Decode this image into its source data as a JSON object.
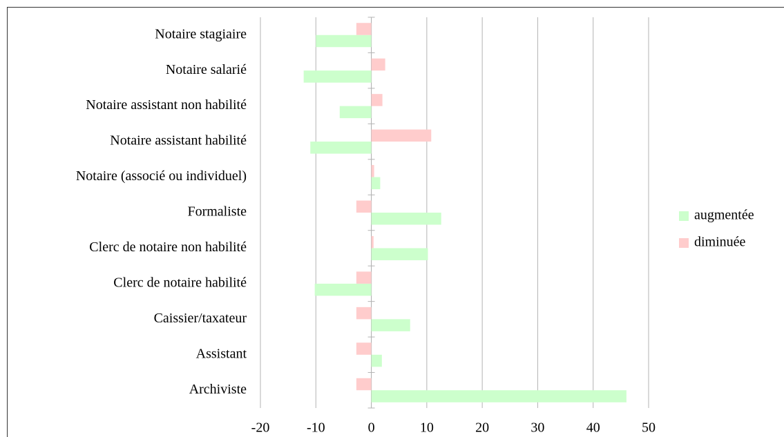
{
  "chart_data": {
    "type": "bar",
    "orientation": "horizontal",
    "categories": [
      "Archiviste",
      "Assistant",
      "Caissier/taxateur",
      "Clerc de notaire habilité",
      "Clerc de notaire non habilité",
      "Formaliste",
      "Notaire (associé ou individuel)",
      "Notaire assistant habilité",
      "Notaire assistant non habilité",
      "Notaire salarié",
      "Notaire stagiaire"
    ],
    "series": [
      {
        "name": "augmentée",
        "color": "#ccffcc",
        "values": [
          46,
          1.9,
          7,
          -10.2,
          10.2,
          12.6,
          1.6,
          -11,
          -5.7,
          -12.2,
          -10
        ]
      },
      {
        "name": "diminuée",
        "color": "#ffcccc",
        "values": [
          -2.7,
          -2.7,
          -2.7,
          -2.7,
          0.4,
          -2.7,
          0.5,
          10.8,
          2,
          2.5,
          -2.7
        ]
      }
    ],
    "xlim": [
      -20,
      50
    ],
    "xticks": [
      -20,
      -10,
      0,
      10,
      20,
      30,
      40,
      50
    ],
    "grid": true,
    "legend": "right"
  }
}
